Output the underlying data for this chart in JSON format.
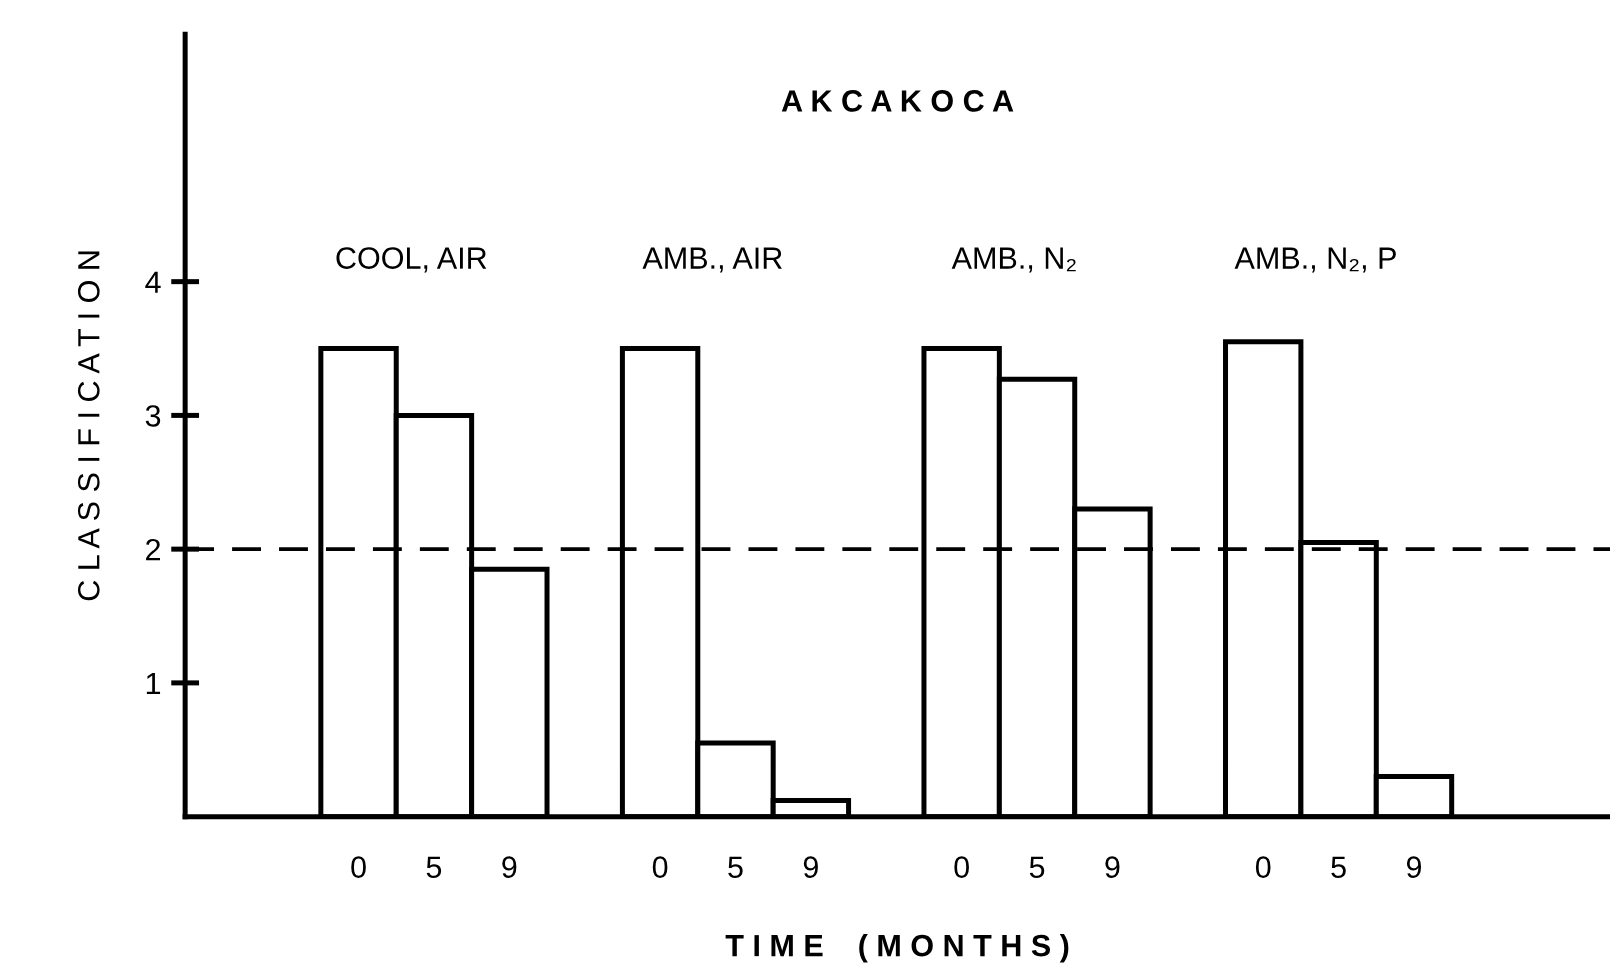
{
  "chart_data": {
    "type": "bar",
    "title": "A K C A K O C A",
    "xlabel": "T I M E    ( M O N T H S )",
    "ylabel": "C L A S S I F I C A T I O N",
    "categories": [
      "0",
      "5",
      "9",
      null,
      "0",
      "5",
      "9",
      null,
      "0",
      "5",
      "9",
      null,
      "0",
      "5",
      "9"
    ],
    "values": [
      3.5,
      3.0,
      1.85,
      null,
      3.5,
      0.55,
      0.12,
      null,
      3.5,
      3.27,
      2.3,
      null,
      3.55,
      2.05,
      0.3
    ],
    "color": "#ffffff",
    "ylim": [
      0,
      5.85
    ],
    "yticks": [
      1,
      2,
      3,
      4
    ],
    "grid": false,
    "legend": false,
    "ref_lines": [
      {
        "axis": "y",
        "value": 2,
        "line_style": "dashed",
        "color": "#000000"
      }
    ],
    "annotations": [
      "COOL, AIR",
      "AMB., AIR",
      "AMB., N₂",
      "AMB., N₂, P"
    ]
  }
}
